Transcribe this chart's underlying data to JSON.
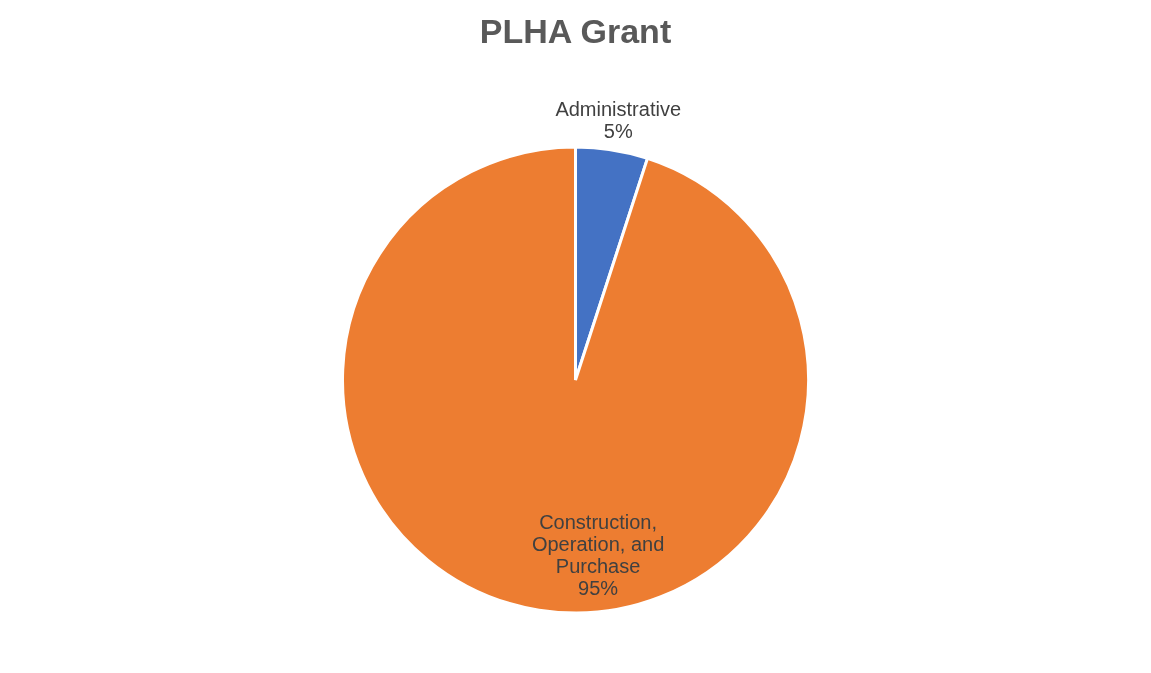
{
  "chart_data": {
    "type": "pie",
    "title": "PLHA Grant",
    "categories": [
      "Administrative",
      "Construction, Operation, and Purchase"
    ],
    "values": [
      5,
      95
    ],
    "colors": [
      "#4472c4",
      "#ed7d31"
    ],
    "value_labels": [
      "5%",
      "95%"
    ]
  }
}
